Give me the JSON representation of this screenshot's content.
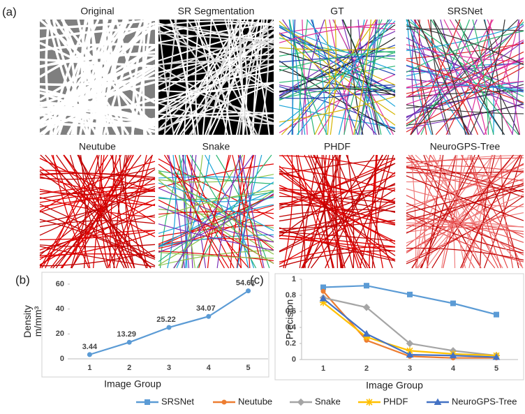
{
  "figure": {
    "panel_labels": [
      "(a)",
      "(b)",
      "(c)"
    ],
    "images": [
      {
        "title": "Original"
      },
      {
        "title": "SR Segmentation"
      },
      {
        "title": "GT"
      },
      {
        "title": "SRSNet"
      },
      {
        "title": "Neutube"
      },
      {
        "title": "Snake"
      },
      {
        "title": "PHDF"
      },
      {
        "title": "NeuroGPS-Tree"
      }
    ]
  },
  "chart_data": [
    {
      "type": "line",
      "x_label": "Image Group",
      "y_label": [
        "Density",
        "m/mm³"
      ],
      "categories": [
        "1",
        "2",
        "3",
        "4",
        "5"
      ],
      "values": [
        3.44,
        13.29,
        25.22,
        34.07,
        54.61
      ],
      "color": "#5b9bd5",
      "marker": "circle",
      "data_labels": true,
      "ylim": [
        0,
        60
      ],
      "yticks": [
        0,
        20,
        40,
        60
      ]
    },
    {
      "type": "line",
      "x_label": "Image Group",
      "y_label": [
        "Precision"
      ],
      "categories": [
        "1",
        "2",
        "3",
        "4",
        "5"
      ],
      "series": [
        {
          "name": "SRSNet",
          "color": "#5b9bd5",
          "marker": "square",
          "values": [
            0.9,
            0.92,
            0.81,
            0.7,
            0.56
          ]
        },
        {
          "name": "Neutube",
          "color": "#ed7d31",
          "marker": "circle",
          "values": [
            0.85,
            0.24,
            0.04,
            0.02,
            0.02
          ]
        },
        {
          "name": "Snake",
          "color": "#a5a5a5",
          "marker": "diamond",
          "values": [
            0.77,
            0.65,
            0.2,
            0.11,
            0.05
          ]
        },
        {
          "name": "PHDF",
          "color": "#ffc000",
          "marker": "star",
          "values": [
            0.71,
            0.28,
            0.11,
            0.07,
            0.05
          ]
        },
        {
          "name": "NeuroGPS-Tree",
          "color": "#4472c4",
          "marker": "triangle",
          "values": [
            0.76,
            0.32,
            0.06,
            0.05,
            0.03
          ]
        }
      ],
      "ylim": [
        0,
        1
      ],
      "yticks": [
        0,
        0.2,
        0.4,
        0.6,
        0.8,
        1
      ],
      "legend": "bottom"
    }
  ]
}
